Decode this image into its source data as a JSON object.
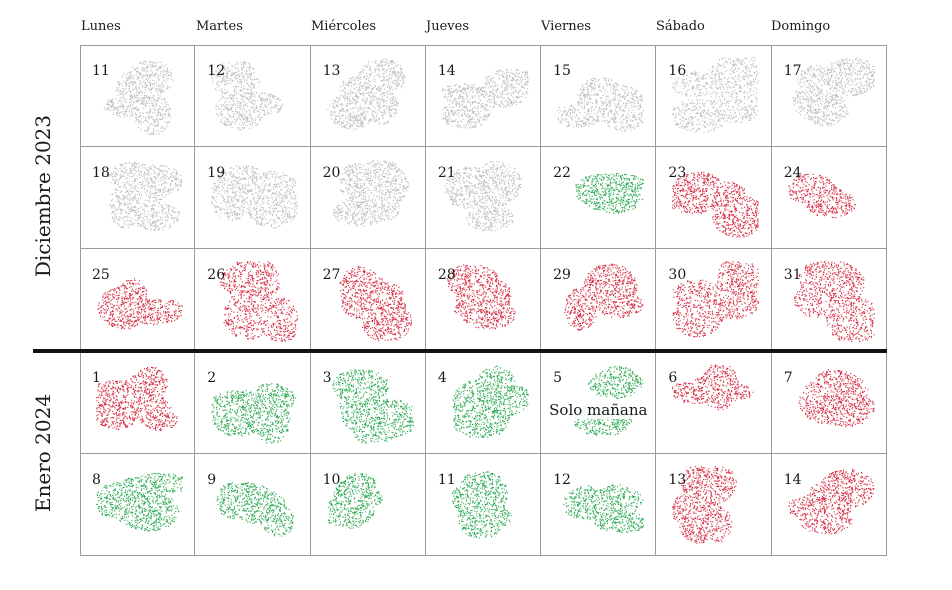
{
  "weekdays": [
    "Lunes",
    "Martes",
    "Miércoles",
    "Jueves",
    "Viernes",
    "Sábado",
    "Domingo"
  ],
  "months": [
    {
      "label": "Diciembre 2023"
    },
    {
      "label": "Enero 2024"
    }
  ],
  "colors": {
    "past": "#b9b9b9",
    "available": "#1fa447",
    "booked": "#d51f36"
  },
  "icon": "map-silhouette-icon",
  "weeks": [
    [
      {
        "d": "11",
        "s": "past"
      },
      {
        "d": "12",
        "s": "past"
      },
      {
        "d": "13",
        "s": "past"
      },
      {
        "d": "14",
        "s": "past"
      },
      {
        "d": "15",
        "s": "past"
      },
      {
        "d": "16",
        "s": "past"
      },
      {
        "d": "17",
        "s": "past"
      }
    ],
    [
      {
        "d": "18",
        "s": "past"
      },
      {
        "d": "19",
        "s": "past"
      },
      {
        "d": "20",
        "s": "past"
      },
      {
        "d": "21",
        "s": "past"
      },
      {
        "d": "22",
        "s": "available"
      },
      {
        "d": "23",
        "s": "booked"
      },
      {
        "d": "24",
        "s": "booked"
      }
    ],
    [
      {
        "d": "25",
        "s": "booked"
      },
      {
        "d": "26",
        "s": "booked"
      },
      {
        "d": "27",
        "s": "booked"
      },
      {
        "d": "28",
        "s": "booked"
      },
      {
        "d": "29",
        "s": "booked"
      },
      {
        "d": "30",
        "s": "booked"
      },
      {
        "d": "31",
        "s": "booked"
      }
    ],
    [
      {
        "d": "1",
        "s": "booked"
      },
      {
        "d": "2",
        "s": "available"
      },
      {
        "d": "3",
        "s": "available"
      },
      {
        "d": "4",
        "s": "available"
      },
      {
        "d": "5",
        "s": "available",
        "note": "Solo mañana"
      },
      {
        "d": "6",
        "s": "booked"
      },
      {
        "d": "7",
        "s": "booked"
      }
    ],
    [
      {
        "d": "8",
        "s": "available"
      },
      {
        "d": "9",
        "s": "available"
      },
      {
        "d": "10",
        "s": "available"
      },
      {
        "d": "11",
        "s": "available"
      },
      {
        "d": "12",
        "s": "available"
      },
      {
        "d": "13",
        "s": "booked"
      },
      {
        "d": "14",
        "s": "booked"
      }
    ]
  ]
}
